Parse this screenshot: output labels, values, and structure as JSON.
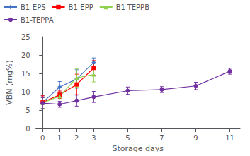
{
  "chart_data": {
    "type": "line",
    "xlabel": "Storage days",
    "ylabel": "VBN (mg%)",
    "series": [
      {
        "name": "B1-EPS",
        "color": "#4472C4",
        "marker": "diamond",
        "x": [
          0,
          1,
          2,
          3
        ],
        "values": [
          7.1,
          11.3,
          13.5,
          18.0
        ],
        "yerr": [
          1.8,
          1.5,
          2.5,
          1.2
        ]
      },
      {
        "name": "B1-EPP",
        "color": "#FF0000",
        "marker": "square",
        "x": [
          0,
          1,
          2,
          3
        ],
        "values": [
          7.1,
          9.2,
          12.0,
          16.5
        ],
        "yerr": [
          1.8,
          1.0,
          2.8,
          2.0
        ]
      },
      {
        "name": "B1-TEPPB",
        "color": "#92D050",
        "marker": "triangle",
        "x": [
          0,
          1,
          2,
          3
        ],
        "values": [
          7.0,
          8.8,
          13.8,
          14.7
        ],
        "yerr": [
          1.5,
          1.0,
          2.5,
          2.0
        ]
      },
      {
        "name": "B1-TEPPA",
        "color": "#7030A0",
        "marker": "circle",
        "x": [
          0,
          1,
          2,
          3,
          5,
          7,
          9,
          11
        ],
        "values": [
          6.9,
          6.6,
          7.6,
          8.6,
          10.3,
          10.6,
          11.6,
          15.6
        ],
        "yerr": [
          1.5,
          0.8,
          1.5,
          1.5,
          1.0,
          0.8,
          1.0,
          0.8
        ]
      }
    ],
    "xlim": [
      -0.4,
      11.6
    ],
    "ylim": [
      0,
      25
    ],
    "xticks": [
      0,
      1,
      2,
      3,
      5,
      7,
      9,
      11
    ],
    "yticks": [
      0,
      5,
      10,
      15,
      20,
      25
    ],
    "legend": "upper left",
    "grid": false
  }
}
